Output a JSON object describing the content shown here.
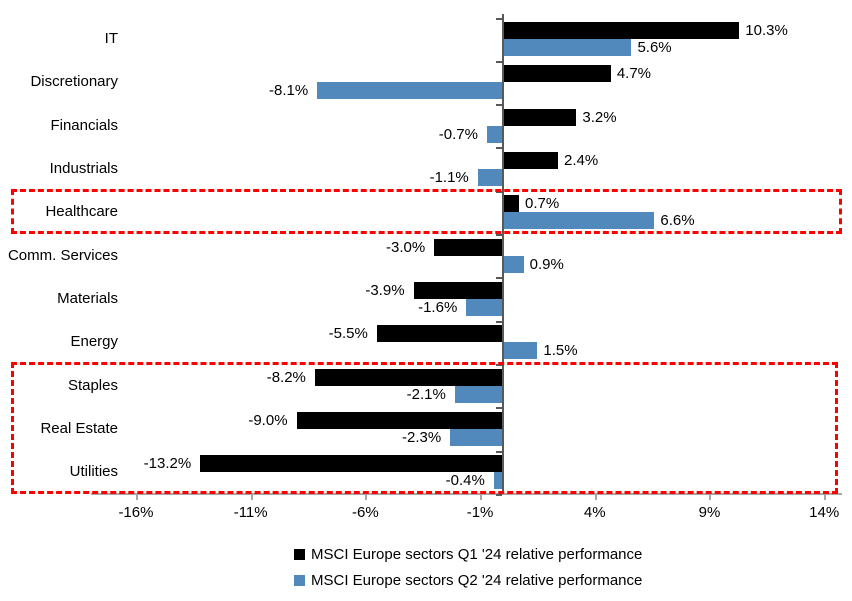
{
  "chart_data": {
    "type": "bar",
    "orientation": "horizontal",
    "title": "",
    "categories": [
      "IT",
      "Discretionary",
      "Financials",
      "Industrials",
      "Healthcare",
      "Comm. Services",
      "Materials",
      "Energy",
      "Staples",
      "Real Estate",
      "Utilities"
    ],
    "series": [
      {
        "name": "MSCI Europe sectors Q1 '24 relative performance",
        "color": "#000000",
        "values": [
          10.3,
          4.7,
          3.2,
          2.4,
          0.7,
          -3.0,
          -3.9,
          -5.5,
          -8.2,
          -9.0,
          -13.2
        ],
        "labels": [
          "10.3%",
          "4.7%",
          "3.2%",
          "2.4%",
          "0.7%",
          "-3.0%",
          "-3.9%",
          "-5.5%",
          "-8.2%",
          "-9.0%",
          "-13.2%"
        ]
      },
      {
        "name": "MSCI Europe sectors Q2 '24 relative performance",
        "color": "#5289BD",
        "values": [
          5.6,
          -8.1,
          -0.7,
          -1.1,
          6.6,
          0.9,
          -1.6,
          1.5,
          -2.1,
          -2.3,
          -0.4
        ],
        "labels": [
          "5.6%",
          "-8.1%",
          "-0.7%",
          "-1.1%",
          "6.6%",
          "0.9%",
          "-1.6%",
          "1.5%",
          "-2.1%",
          "-2.3%",
          "-0.4%"
        ]
      }
    ],
    "x_ticks": [
      -16,
      -11,
      -6,
      -1,
      4,
      9,
      14
    ],
    "x_tick_labels": [
      "-16%",
      "-11%",
      "-6%",
      "-1%",
      "4%",
      "9%",
      "14%"
    ],
    "xlim": [
      -18,
      14.8
    ],
    "grid": false,
    "legend_position": "bottom",
    "highlights": [
      {
        "name": "healthcare-highlight",
        "first_category": "Healthcare",
        "last_category": "Healthcare",
        "color": "#ff0000"
      },
      {
        "name": "defensives-highlight",
        "first_category": "Staples",
        "last_category": "Utilities",
        "color": "#ff0000"
      }
    ],
    "colors": {
      "q1_bar": "#000000",
      "q2_bar": "#5289BD",
      "highlight_border": "#ff0000",
      "value_axis_line": "#a6a6a6",
      "category_axis_line": "#595959",
      "text": "#000000",
      "background": "#ffffff"
    }
  }
}
